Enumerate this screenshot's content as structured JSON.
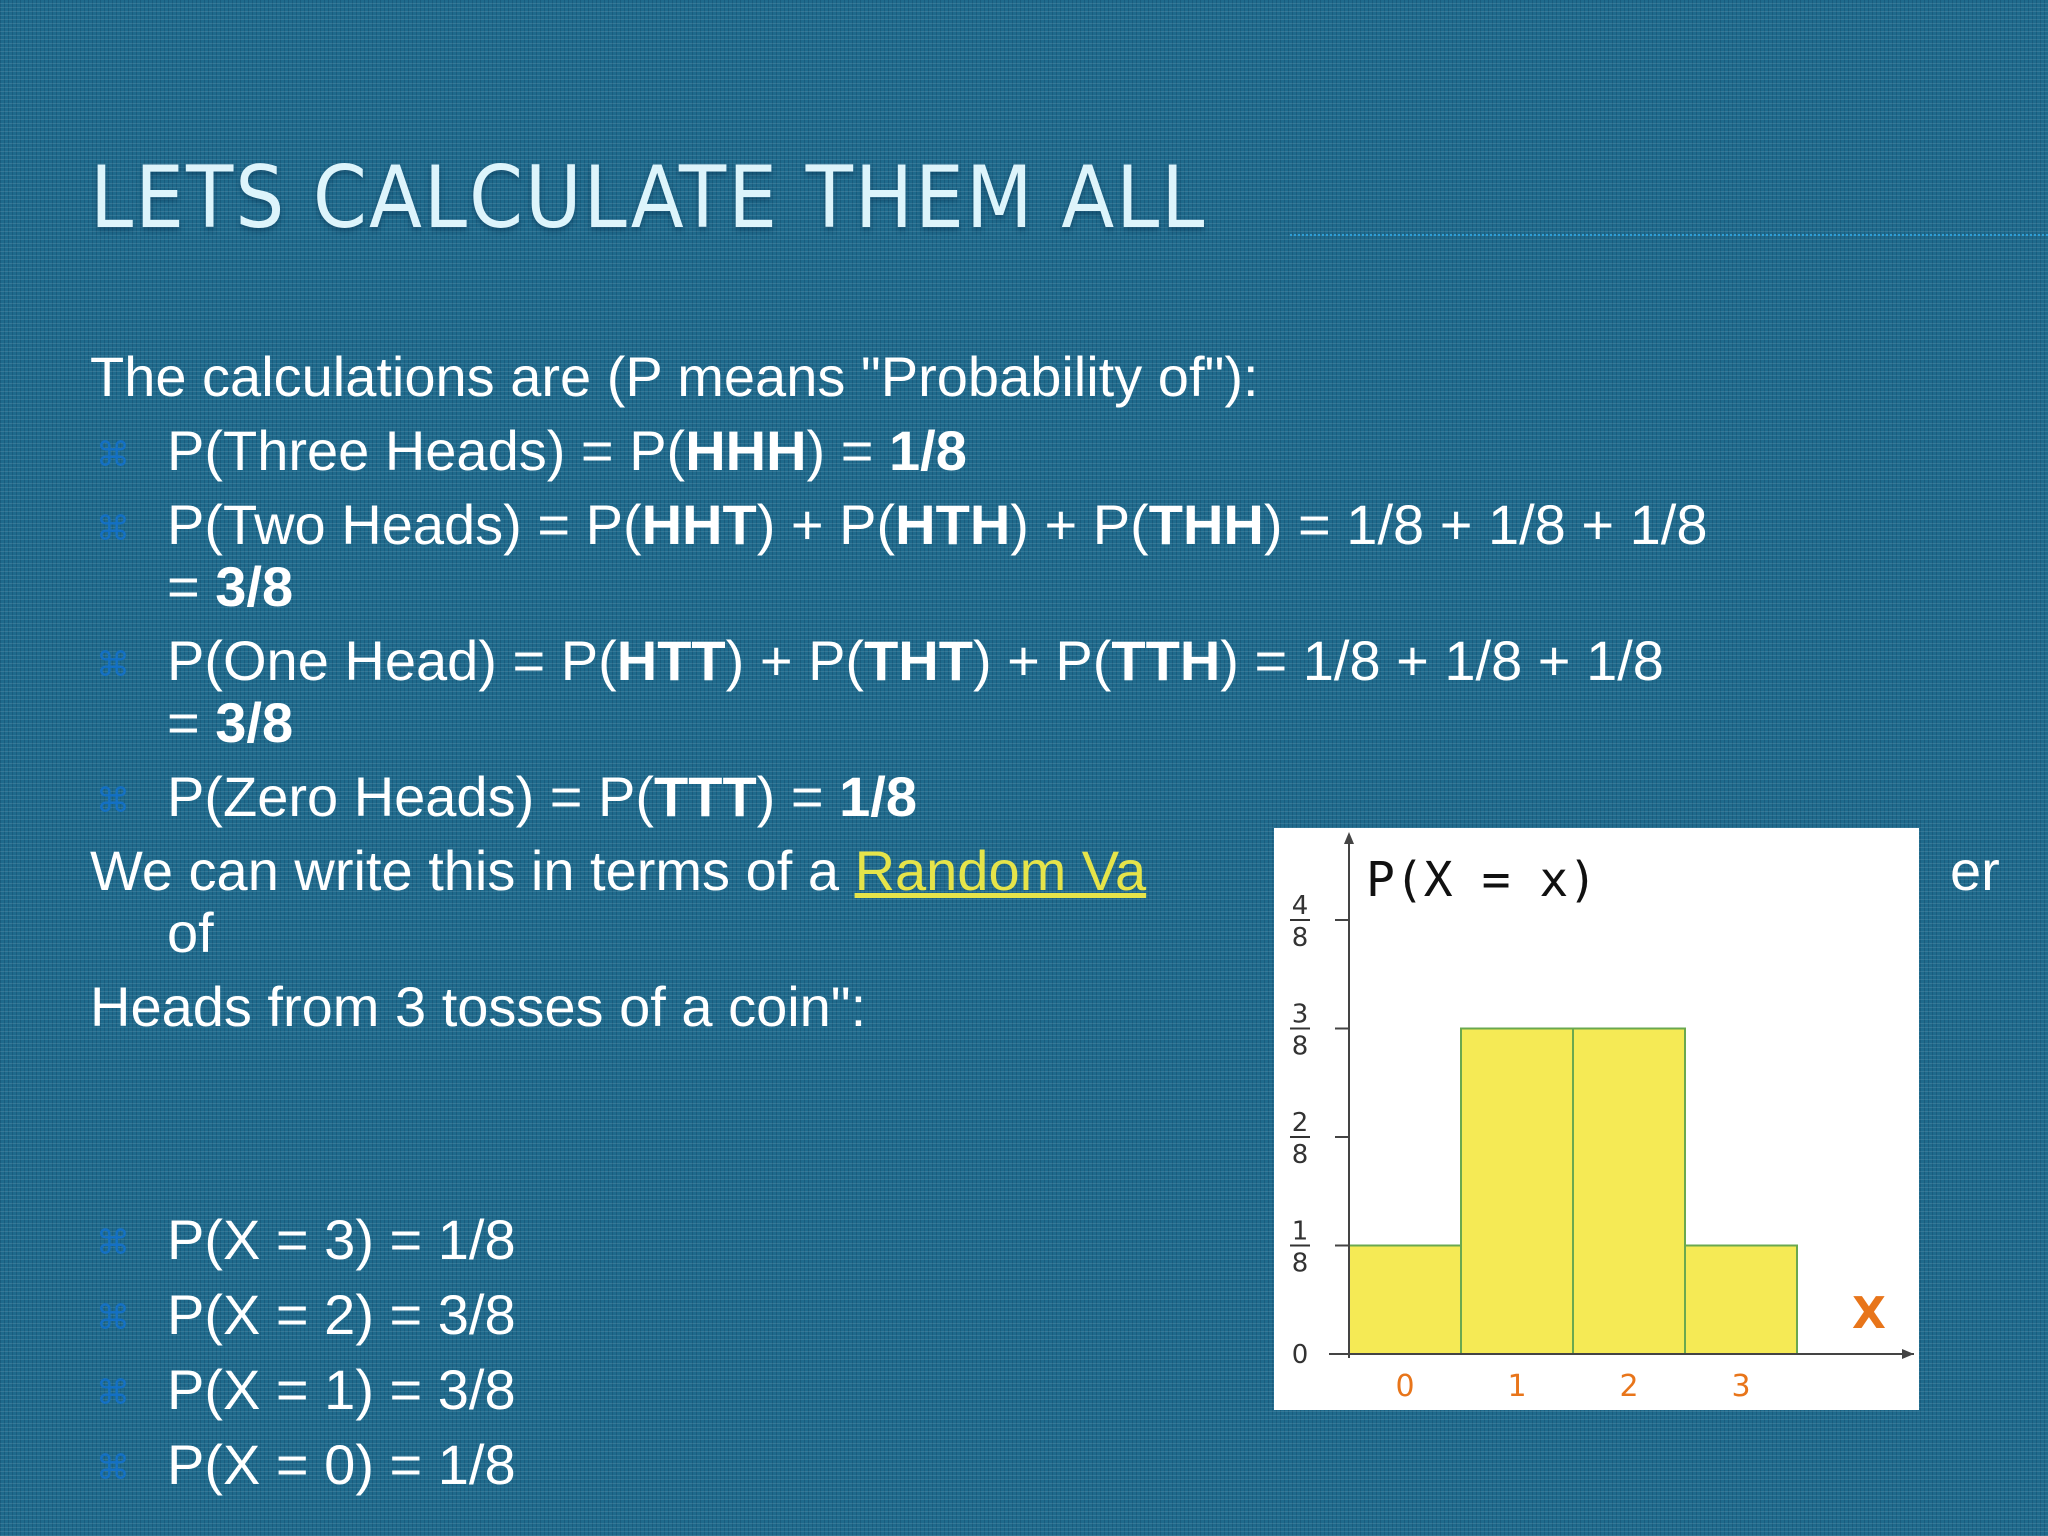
{
  "slide": {
    "title": "Lets Calculate them all"
  },
  "intro": "The calculations are (P means \"Probability of\"):",
  "calc_items": [
    {
      "segments": [
        {
          "t": "P(Three Heads) = P(",
          "bold": false
        },
        {
          "t": "HHH",
          "bold": true
        },
        {
          "t": ") = ",
          "bold": false
        },
        {
          "t": "1/8",
          "bold": true
        }
      ]
    },
    {
      "segments": [
        {
          "t": "P(Two Heads) = P(",
          "bold": false
        },
        {
          "t": "HHT",
          "bold": true
        },
        {
          "t": ") + P(",
          "bold": false
        },
        {
          "t": "HTH",
          "bold": true
        },
        {
          "t": ") + P(",
          "bold": false
        },
        {
          "t": "THH",
          "bold": true
        },
        {
          "t": ") = 1/8 + 1/8 + 1/8",
          "bold": false
        }
      ],
      "cont": [
        {
          "t": "= ",
          "bold": false
        },
        {
          "t": "3/8",
          "bold": true
        }
      ]
    },
    {
      "segments": [
        {
          "t": "P(One Head) = P(",
          "bold": false
        },
        {
          "t": "HTT",
          "bold": true
        },
        {
          "t": ") + P(",
          "bold": false
        },
        {
          "t": "THT",
          "bold": true
        },
        {
          "t": ") + P(",
          "bold": false
        },
        {
          "t": "TTH",
          "bold": true
        },
        {
          "t": ") = 1/8 + 1/8 + 1/8",
          "bold": false
        }
      ],
      "cont": [
        {
          "t": "= ",
          "bold": false
        },
        {
          "t": "3/8",
          "bold": true
        }
      ]
    },
    {
      "segments": [
        {
          "t": "P(Zero Heads) = P(",
          "bold": false
        },
        {
          "t": "TTT",
          "bold": true
        },
        {
          "t": ") = ",
          "bold": false
        },
        {
          "t": "1/8",
          "bold": true
        }
      ]
    }
  ],
  "random_var": {
    "before": "We can write this in terms of a ",
    "link": "Random Va",
    "after_visible": "er",
    "cont": "of",
    "line3": "Heads from 3 tosses of a coin\":"
  },
  "x_items": [
    "P(X = 3) = 1/8",
    "P(X = 2) = 3/8",
    "P(X = 1) = 3/8",
    "P(X = 0) = 1/8"
  ],
  "bullet_glyph": "⌘",
  "colors": {
    "background": "#1f6a8c",
    "title": "#ddf4fb",
    "bullet": "#1470c4",
    "link": "#e6e44a",
    "bar_fill": "#f5ea55",
    "bar_stroke": "#6aa84f",
    "x_tick": "#e8751a"
  },
  "chart_data": {
    "type": "bar",
    "title": "P(X = x)",
    "xlabel": "X",
    "ylabel": "",
    "categories": [
      "0",
      "1",
      "2",
      "3"
    ],
    "values": [
      0.125,
      0.375,
      0.375,
      0.125
    ],
    "ylim": [
      0,
      0.5
    ],
    "yticks": [
      {
        "value": 0,
        "num": "0",
        "den": ""
      },
      {
        "value": 0.125,
        "num": "1",
        "den": "8"
      },
      {
        "value": 0.25,
        "num": "2",
        "den": "8"
      },
      {
        "value": 0.375,
        "num": "3",
        "den": "8"
      },
      {
        "value": 0.5,
        "num": "4",
        "den": "8"
      }
    ],
    "grid": false,
    "legend": "none"
  }
}
